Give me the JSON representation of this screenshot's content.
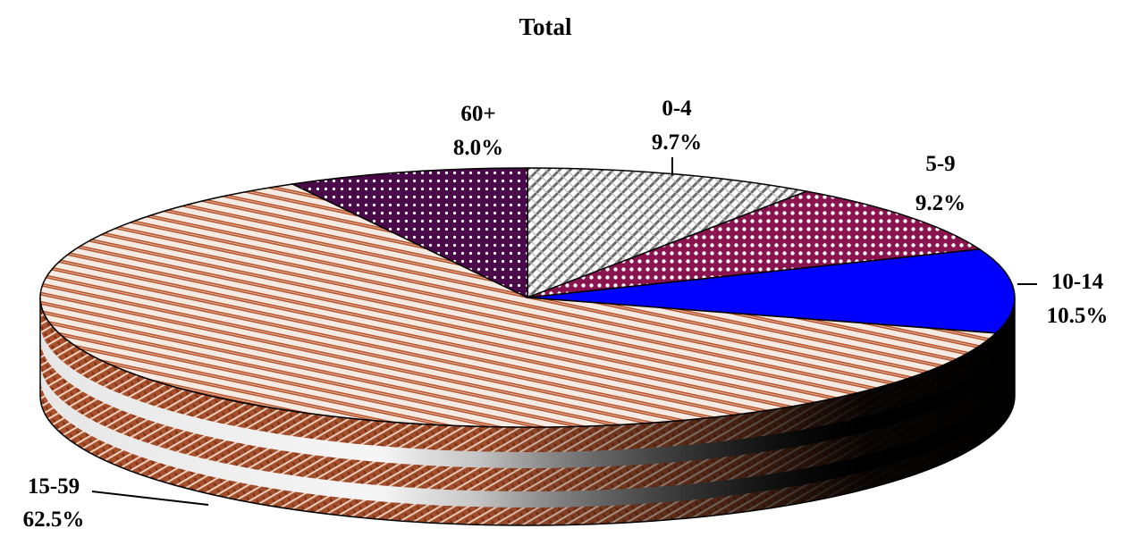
{
  "chart_data": {
    "type": "pie",
    "title": "Total",
    "slices": [
      {
        "label": "0-4",
        "value": 9.7,
        "value_label": "9.7%",
        "pattern": "diamond-lattice",
        "color": "#9a9a9a"
      },
      {
        "label": "5-9",
        "value": 9.2,
        "value_label": "9.2%",
        "pattern": "dot-grid",
        "color": "#8a1450"
      },
      {
        "label": "10-14",
        "value": 10.5,
        "value_label": "10.5%",
        "pattern": "solid",
        "color": "#0000ff"
      },
      {
        "label": "15-59",
        "value": 62.5,
        "value_label": "62.5%",
        "pattern": "diagonal-stripes",
        "color": "#b5542e"
      },
      {
        "label": "60+",
        "value": 8.0,
        "value_label": "8.0%",
        "pattern": "dot-grid",
        "color": "#4a0a4a"
      }
    ],
    "style": "3d-pie"
  }
}
